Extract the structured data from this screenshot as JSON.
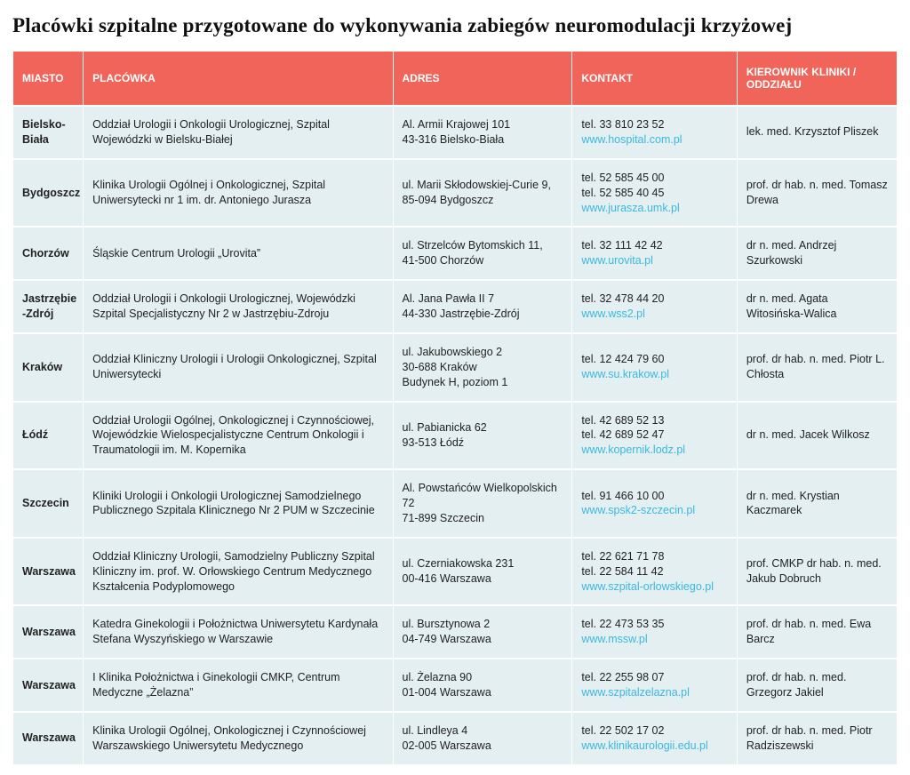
{
  "title": "Placówki szpitalne przygotowane do wykonywania zabiegów neuromodulacji krzyżowej",
  "columns": [
    "MIASTO",
    "PLACÓWKA",
    "ADRES",
    "KONTAKT",
    "KIEROWNIK KLINIKI / ODDZIAŁU"
  ],
  "col_widths": [
    "72px",
    "320px",
    "185px",
    "170px",
    "165px"
  ],
  "header_bg": "#f0645a",
  "header_fg": "#ffffff",
  "cell_bg": "#e3eff1",
  "link_color": "#3bb8e0",
  "title_fontsize": 23,
  "header_fontsize": 12,
  "cell_fontsize": 12.5,
  "rows": [
    {
      "city": "Bielsko-Biała",
      "facility": "Oddział Urologii i Onkologii Urologicznej, Szpital Wojewódzki w Bielsku-Białej",
      "address": "Al. Armii Krajowej 101\n43-316 Bielsko-Biała",
      "phones": [
        "tel. 33 810 23 52"
      ],
      "url": "www.hospital.com.pl",
      "head": "lek. med. Krzysztof Pliszek"
    },
    {
      "city": "Bydgoszcz",
      "facility": "Klinika Urologii Ogólnej i Onkologicznej, Szpital Uniwersytecki nr 1 im. dr. Antoniego Jurasza",
      "address": "ul. Marii Skłodowskiej-Curie 9,\n85-094 Bydgoszcz",
      "phones": [
        "tel. 52 585 45 00",
        "tel. 52 585 40 45"
      ],
      "url": "www.jurasza.umk.pl",
      "head": "prof. dr hab. n. med. Tomasz Drewa"
    },
    {
      "city": "Chorzów",
      "facility": "Śląskie Centrum Urologii „Urovita”",
      "address": "ul. Strzelców Bytomskich 11,\n41-500 Chorzów",
      "phones": [
        "tel. 32 111 42 42"
      ],
      "url": "www.urovita.pl",
      "head": "dr n. med. Andrzej Szurkowski"
    },
    {
      "city": "Jastrzębie\n-Zdrój",
      "facility": "Oddział Urologii i Onkologii Urologicznej, Wojewódzki Szpital Specjalistyczny Nr 2 w Jastrzębiu-Zdroju",
      "address": "Al. Jana Pawła II 7\n44-330 Jastrzębie-Zdrój",
      "phones": [
        "tel. 32 478 44 20"
      ],
      "url": "www.wss2.pl",
      "head": "dr n. med. Agata Witosińska-Walica"
    },
    {
      "city": "Kraków",
      "facility": "Oddział Kliniczny Urologii i Urologii Onkologicznej, Szpital Uniwersytecki",
      "address": "ul. Jakubowskiego 2\n30-688 Kraków\nBudynek H, poziom 1",
      "phones": [
        "tel. 12 424 79 60"
      ],
      "url": "www.su.krakow.pl",
      "head": "prof. dr hab. n. med. Piotr L. Chłosta"
    },
    {
      "city": "Łódź",
      "facility": "Oddział Urologii Ogólnej, Onkologicznej i Czynnościowej, Wojewódzkie Wielospecjalistyczne Centrum Onkologii i Traumatologii im. M. Kopernika",
      "address": "ul. Pabianicka 62\n93-513 Łódź",
      "phones": [
        "tel. 42 689 52 13",
        "tel. 42 689 52 47"
      ],
      "url": "www.kopernik.lodz.pl",
      "head": "dr n. med. Jacek Wilkosz"
    },
    {
      "city": "Szczecin",
      "facility": "Kliniki Urologii i Onkologii Urologicznej Samodzielnego Publicznego Szpitala Klinicznego Nr 2 PUM w Szczecinie",
      "address": "Al. Powstańców Wielkopolskich 72\n71-899 Szczecin",
      "phones": [
        "tel. 91 466 10 00"
      ],
      "url": "www.spsk2-szczecin.pl",
      "head": "dr n. med. Krystian Kaczmarek"
    },
    {
      "city": "Warszawa",
      "facility": "Oddział Kliniczny Urologii, Samodzielny Publiczny Szpital Kliniczny im. prof. W. Orłowskiego Centrum Medycznego Kształcenia Podyplomowego",
      "address": "ul. Czerniakowska 231\n00-416 Warszawa",
      "phones": [
        "tel. 22 621 71 78",
        "tel. 22 584 11 42"
      ],
      "url": "www.szpital-orlowskiego.pl",
      "head": "prof. CMKP dr hab. n. med. Jakub Dobruch"
    },
    {
      "city": "Warszawa",
      "facility": "Katedra Ginekologii i Położnictwa Uniwersytetu Kardynała Stefana Wyszyńskiego w Warszawie",
      "address": "ul. Bursztynowa 2\n04-749 Warszawa",
      "phones": [
        "tel. 22 473 53 35"
      ],
      "url": "www.mssw.pl",
      "head": "prof. dr hab. n. med. Ewa Barcz"
    },
    {
      "city": "Warszawa",
      "facility": "I Klinika Położnictwa i Ginekologii CMKP, Centrum Medyczne „Żelazna”",
      "address": "ul. Żelazna 90\n01-004 Warszawa",
      "phones": [
        "tel. 22 255 98 07"
      ],
      "url": "www.szpitalzelazna.pl",
      "head": "prof. dr hab. n. med. Grzegorz Jakiel"
    },
    {
      "city": "Warszawa",
      "facility": "Klinika Urologii Ogólnej, Onkologicznej i Czynnościowej Warszawskiego Uniwersytetu Medycznego",
      "address": "ul. Lindleya 4\n02-005 Warszawa",
      "phones": [
        "tel. 22 502 17 02"
      ],
      "url": "www.klinikaurologii.edu.pl",
      "head": "prof. dr hab. n. med. Piotr Radziszewski"
    }
  ]
}
